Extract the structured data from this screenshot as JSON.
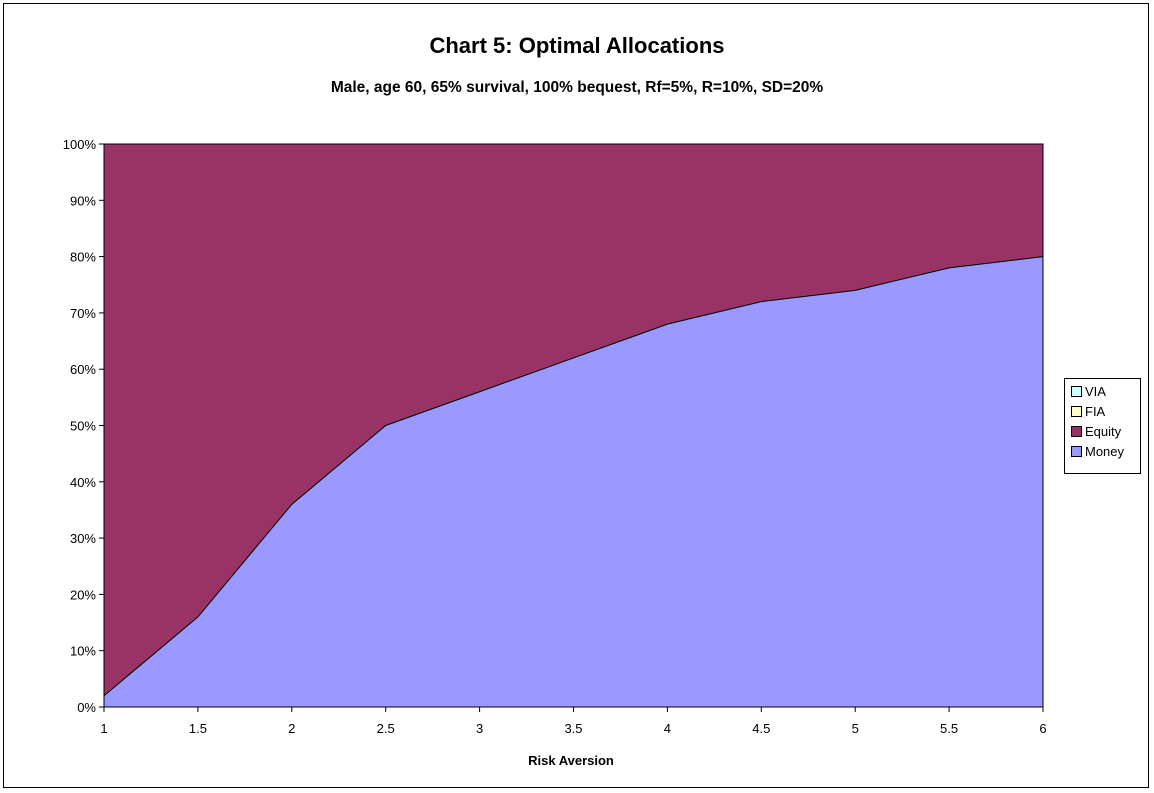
{
  "chart_data": {
    "type": "area",
    "stacked": true,
    "title": "Chart 5: Optimal Allocations",
    "subtitle": "Male, age 60, 65% survival, 100% bequest, Rf=5%, R=10%, SD=20%",
    "xlabel": "Risk Aversion",
    "ylabel": "",
    "x": [
      1,
      1.5,
      2,
      2.5,
      3,
      3.5,
      4,
      4.5,
      5,
      5.5,
      6
    ],
    "x_tick_labels": [
      "1",
      "1.5",
      "2",
      "2.5",
      "3",
      "3.5",
      "4",
      "4.5",
      "5",
      "5.5",
      "6"
    ],
    "y_tick_labels": [
      "0%",
      "10%",
      "20%",
      "30%",
      "40%",
      "50%",
      "60%",
      "70%",
      "80%",
      "90%",
      "100%"
    ],
    "ylim": [
      0,
      100
    ],
    "grid": false,
    "legend_position": "right",
    "series": [
      {
        "name": "Money",
        "color": "#9999ff",
        "values": [
          2,
          16,
          36,
          50,
          56,
          62,
          68,
          72,
          74,
          78,
          80
        ]
      },
      {
        "name": "Equity",
        "color": "#993366",
        "values": [
          98,
          84,
          64,
          50,
          44,
          38,
          32,
          28,
          26,
          22,
          20
        ]
      },
      {
        "name": "FIA",
        "color": "#ffffcc",
        "values": [
          0,
          0,
          0,
          0,
          0,
          0,
          0,
          0,
          0,
          0,
          0
        ]
      },
      {
        "name": "VIA",
        "color": "#ccffff",
        "values": [
          0,
          0,
          0,
          0,
          0,
          0,
          0,
          0,
          0,
          0,
          0
        ]
      }
    ],
    "legend_order": [
      "VIA",
      "FIA",
      "Equity",
      "Money"
    ]
  }
}
